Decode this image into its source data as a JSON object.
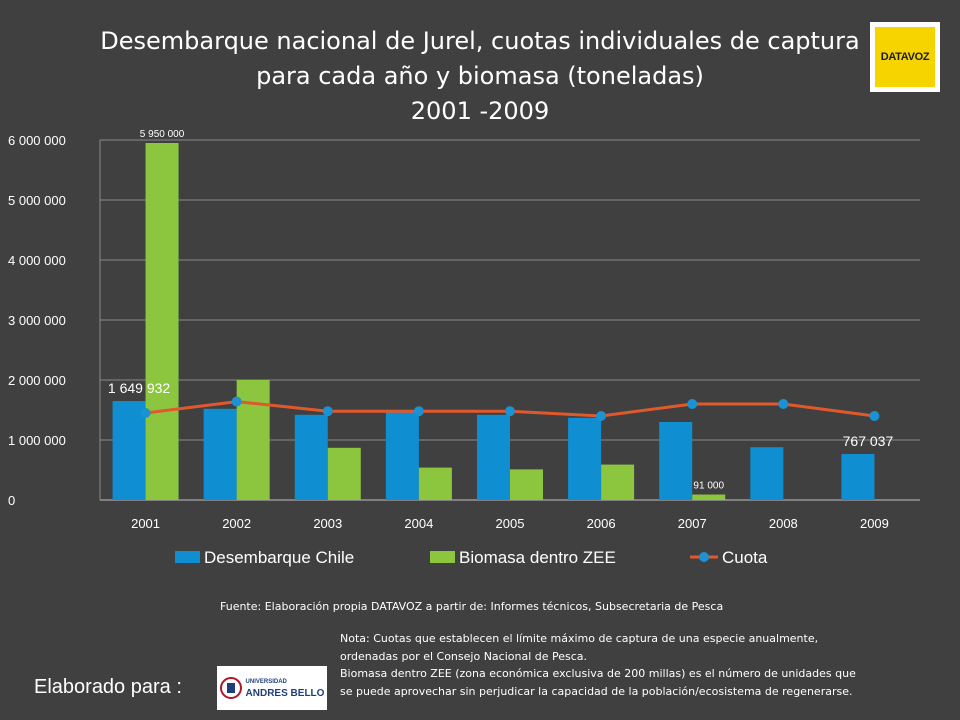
{
  "header": {
    "title_lines": [
      "Desembarque nacional de Jurel, cuotas individuales de captura",
      "para cada año y biomasa (toneladas)",
      "2001 -2009"
    ]
  },
  "logos": {
    "datavoz": "DATAVOZ",
    "unab_small": "UNIVERSIDAD",
    "unab_big": "ANDRES BELLO"
  },
  "chart_data": {
    "type": "bar",
    "categories": [
      "2001",
      "2002",
      "2003",
      "2004",
      "2005",
      "2006",
      "2007",
      "2008",
      "2009"
    ],
    "series": [
      {
        "name": "Desembarque Chile",
        "type": "bar",
        "color": "#0f8fd2",
        "values": [
          1649932,
          1520000,
          1420000,
          1470000,
          1420000,
          1370000,
          1300000,
          880000,
          767037
        ]
      },
      {
        "name": "Biomasa dentro ZEE",
        "type": "bar",
        "color": "#8cc63f",
        "values": [
          5950000,
          2000000,
          870000,
          540000,
          510000,
          590000,
          91000,
          null,
          null
        ]
      },
      {
        "name": "Cuota",
        "type": "line",
        "color": "#e0582c",
        "marker_color": "#1b92d4",
        "values": [
          1450000,
          1640000,
          1480000,
          1480000,
          1480000,
          1400000,
          1600000,
          1600000,
          1400000
        ]
      }
    ],
    "ylim": [
      0,
      6000000
    ],
    "yticks": [
      0,
      1000000,
      2000000,
      3000000,
      4000000,
      5000000,
      6000000
    ],
    "ytick_labels": [
      "0",
      "1 000 000",
      "2 000 000",
      "3 000 000",
      "4 000 000",
      "5 000 000",
      "6 000 000"
    ],
    "data_labels": [
      {
        "series": 1,
        "index": 0,
        "text": "5 950 000",
        "style": "small"
      },
      {
        "series": 0,
        "index": 0,
        "text": "1 649 932",
        "style": "large"
      },
      {
        "series": 1,
        "index": 6,
        "text": "91 000",
        "style": "small"
      },
      {
        "series": 0,
        "index": 8,
        "text": "767 037",
        "style": "large"
      }
    ],
    "grid": true,
    "legend_position": "bottom"
  },
  "footer": {
    "source": "Fuente: Elaboración propia DATAVOZ a partir de: Informes técnicos, Subsecretaria de Pesca",
    "notes": [
      "Nota: Cuotas que establecen el límite máximo de captura de una especie anualmente,",
      "ordenadas por el Consejo Nacional de Pesca.",
      "Biomasa dentro  ZEE (zona económica exclusiva de 200 millas) es el número de unidades que",
      "se puede aprovechar sin perjudicar la capacidad de la población/ecosistema de regenerarse."
    ],
    "elaborado": "Elaborado para :"
  }
}
